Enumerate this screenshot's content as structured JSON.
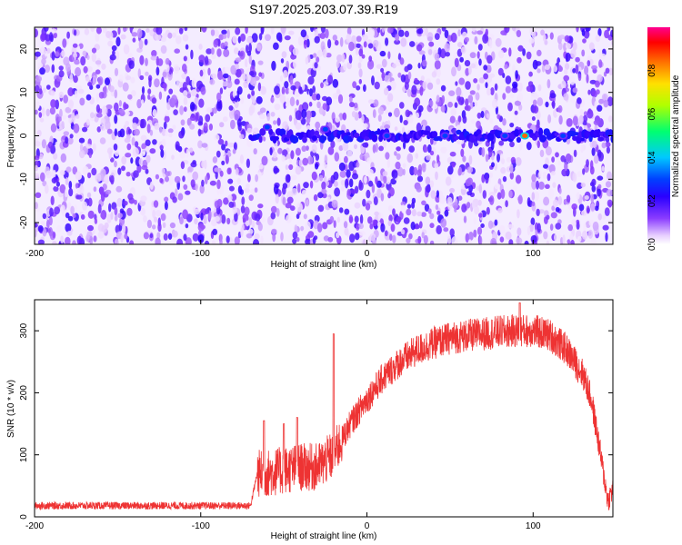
{
  "title": "S197.2025.203.07.39.R19",
  "chart_data": [
    {
      "type": "heatmap",
      "xlabel": "Height of straight line (km)",
      "ylabel": "Frequency (Hz)",
      "xlim": [
        -200,
        148
      ],
      "ylim": [
        -25,
        25
      ],
      "xticks": [
        -200,
        -100,
        0,
        100
      ],
      "yticks": [
        -20,
        -10,
        0,
        10,
        20
      ],
      "colorbar": {
        "label": "Normalized spectral amplitude",
        "range": [
          0,
          1
        ],
        "ticks": [
          0.0,
          0.2,
          0.4,
          0.6,
          0.8
        ],
        "colors": [
          "#ffffff",
          "#d9b3ff",
          "#7a2bff",
          "#3300ff",
          "#0000ff",
          "#00c8ff",
          "#00ff80",
          "#b0ff00",
          "#ffe000",
          "#ff7000",
          "#ff0000",
          "#ff0090"
        ]
      },
      "ridge": {
        "frequency": 0,
        "x_start": -70,
        "x_end": 148
      },
      "peaks": [
        {
          "x": -60,
          "y": 2,
          "value": 0.3
        },
        {
          "x": -25,
          "y": 1.5,
          "value": 0.3
        },
        {
          "x": 12,
          "y": 0,
          "value": 0.3
        },
        {
          "x": 47,
          "y": 0,
          "value": 0.3
        },
        {
          "x": 83,
          "y": 0,
          "value": 0.3
        },
        {
          "x": 95,
          "y": 0,
          "value": 0.85
        },
        {
          "x": 118,
          "y": 0,
          "value": 0.3
        }
      ],
      "gaps_x": [
        -60,
        95
      ]
    },
    {
      "type": "line",
      "xlabel": "Height of straight line (km)",
      "ylabel": "SNR (10 * v/v)",
      "xlim": [
        -200,
        148
      ],
      "ylim": [
        0,
        350
      ],
      "xticks": [
        -200,
        -100,
        0,
        100
      ],
      "yticks": [
        0,
        100,
        200,
        300
      ],
      "color": "#ee3333",
      "envelope": {
        "x": [
          -200,
          -150,
          -100,
          -70,
          -66,
          -60,
          -50,
          -40,
          -30,
          -20,
          -10,
          0,
          10,
          20,
          30,
          40,
          50,
          60,
          70,
          80,
          90,
          100,
          110,
          120,
          130,
          135,
          140,
          145,
          148
        ],
        "y": [
          18,
          18,
          18,
          18,
          70,
          70,
          75,
          80,
          80,
          100,
          150,
          190,
          225,
          250,
          268,
          280,
          288,
          292,
          295,
          298,
          300,
          300,
          293,
          270,
          230,
          190,
          110,
          25,
          45
        ]
      },
      "spikes": [
        {
          "x": -62,
          "y": 155
        },
        {
          "x": -50,
          "y": 150
        },
        {
          "x": -42,
          "y": 160
        },
        {
          "x": -20,
          "y": 295
        },
        {
          "x": 92,
          "y": 345
        }
      ]
    }
  ]
}
